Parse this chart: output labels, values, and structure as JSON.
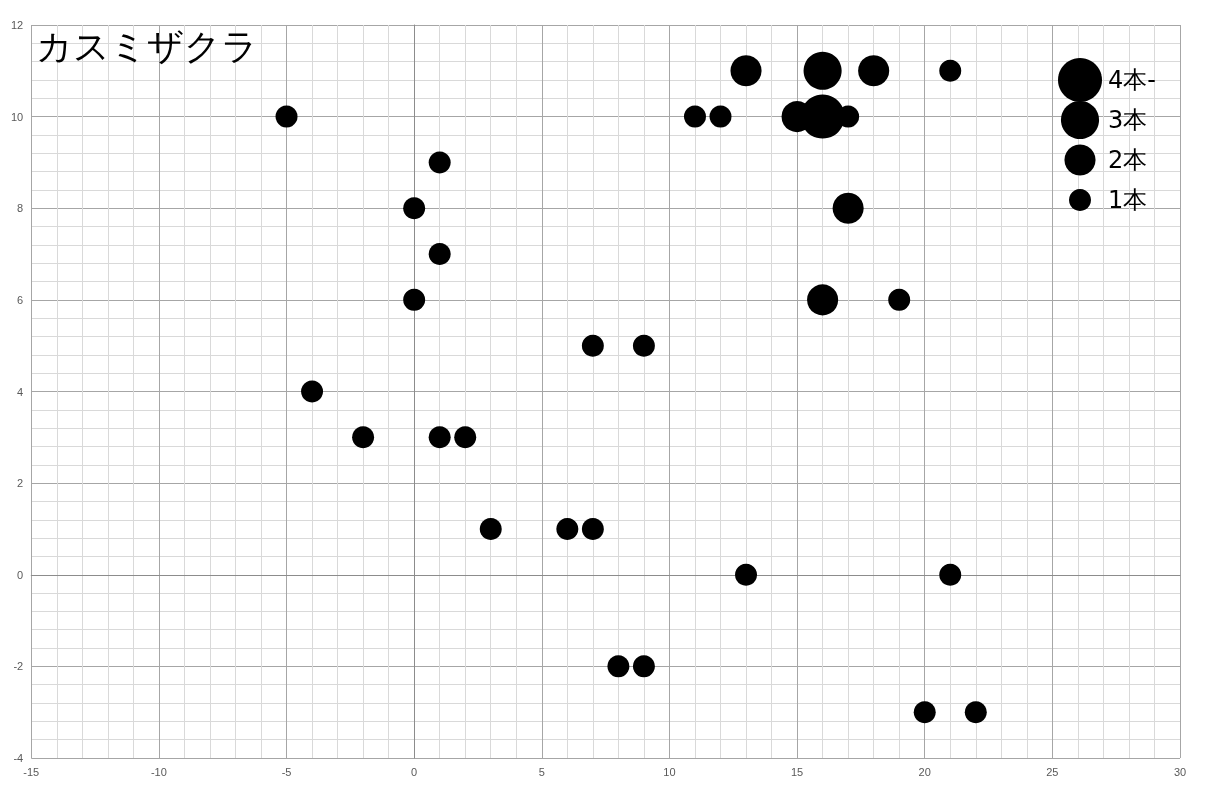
{
  "chart_data": {
    "type": "bubble",
    "title": "カスミザクラ",
    "x": [
      -5,
      -4,
      -2,
      0,
      0,
      1,
      1,
      1,
      2,
      3,
      6,
      7,
      7,
      9,
      8,
      9,
      11,
      12,
      13,
      16,
      18,
      21,
      15,
      16,
      17,
      17,
      16,
      19,
      13,
      21,
      20,
      22
    ],
    "values": [
      10,
      4,
      3,
      8,
      6,
      9,
      7,
      3,
      3,
      1,
      1,
      1,
      5,
      5,
      -2,
      -2,
      10,
      10,
      11,
      11,
      11,
      11,
      10,
      10,
      10,
      8,
      6,
      6,
      0,
      0,
      -3,
      -3
    ],
    "sizes": [
      1,
      1,
      1,
      1,
      1,
      1,
      1,
      1,
      1,
      1,
      1,
      1,
      1,
      1,
      1,
      1,
      1,
      1,
      2,
      3,
      2,
      1,
      2,
      4,
      1,
      2,
      2,
      1,
      1,
      1,
      1,
      1
    ],
    "size_legend": [
      {
        "value": 4,
        "label": "4本-"
      },
      {
        "value": 3,
        "label": "3本"
      },
      {
        "value": 2,
        "label": "2本"
      },
      {
        "value": 1,
        "label": "1本"
      }
    ],
    "color": "#000000",
    "xlim": [
      -15,
      30
    ],
    "xticks": [
      -15,
      -10,
      -5,
      0,
      5,
      10,
      15,
      20,
      25,
      30
    ],
    "ylim": [
      -4,
      12
    ],
    "yticks": [
      -4,
      -2,
      0,
      2,
      4,
      6,
      8,
      10,
      12
    ],
    "grid": true
  }
}
